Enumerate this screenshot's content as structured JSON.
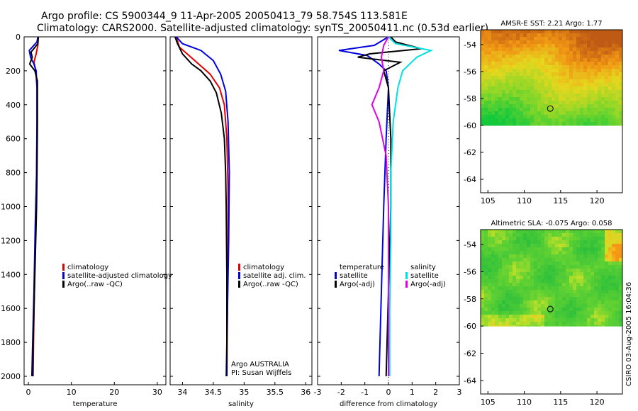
{
  "title_line1": "Argo profile: CS 5900344_9 11-Apr-2005 20050413_79 58.754S 113.581E",
  "title_line2": "Climatology: CARS2000. Satellite-adjusted climatology: synTS_20050411.nc (0.53d earlier)",
  "side_label": "CSIRO 03-Aug-2005 16:04:36",
  "colors": {
    "climatology": "#e00000",
    "satellite": "#0000e0",
    "argo": "#000000",
    "cyan": "#00e0e0",
    "magenta": "#e000e0"
  },
  "chart_data": [
    {
      "id": "temperature",
      "type": "line",
      "xlabel": "temperature",
      "xlim": [
        -1,
        32
      ],
      "ylim": [
        2050,
        0
      ],
      "xticks": [
        0,
        10,
        20,
        30
      ],
      "yticks": [
        0,
        200,
        400,
        600,
        800,
        1000,
        1200,
        1400,
        1600,
        1800,
        2000
      ],
      "legend": [
        {
          "label": "climatology",
          "color": "#e00000"
        },
        {
          "label": "satellite-adjusted climatology",
          "color": "#0000e0"
        },
        {
          "label": "Argo(..raw -QC)",
          "color": "#000000"
        }
      ],
      "series": [
        {
          "name": "climatology",
          "color": "#e00000",
          "points": [
            [
              2.3,
              0
            ],
            [
              2.2,
              50
            ],
            [
              1.8,
              100
            ],
            [
              1.3,
              150
            ],
            [
              1.7,
              200
            ],
            [
              2.0,
              300
            ],
            [
              2.0,
              500
            ],
            [
              1.9,
              800
            ],
            [
              1.7,
              1100
            ],
            [
              1.4,
              1500
            ],
            [
              1.2,
              1800
            ],
            [
              1.1,
              2000
            ]
          ]
        },
        {
          "name": "satellite-adjusted climatology",
          "color": "#0000e0",
          "points": [
            [
              2.2,
              0
            ],
            [
              2.0,
              30
            ],
            [
              0.2,
              80
            ],
            [
              0.5,
              120
            ],
            [
              1.3,
              160
            ],
            [
              1.8,
              200
            ],
            [
              2.0,
              300
            ],
            [
              2.0,
              500
            ],
            [
              1.9,
              800
            ],
            [
              1.6,
              1100
            ],
            [
              1.3,
              1500
            ],
            [
              1.0,
              1800
            ],
            [
              0.8,
              2000
            ]
          ]
        },
        {
          "name": "Argo",
          "color": "#000000",
          "points": [
            [
              2.3,
              0
            ],
            [
              2.2,
              40
            ],
            [
              0.6,
              90
            ],
            [
              0.9,
              120
            ],
            [
              0.3,
              160
            ],
            [
              1.5,
              200
            ],
            [
              2.1,
              260
            ],
            [
              2.1,
              500
            ],
            [
              2.0,
              800
            ],
            [
              1.9,
              1000
            ],
            [
              1.6,
              1300
            ],
            [
              1.3,
              1600
            ],
            [
              1.1,
              1800
            ],
            [
              1.0,
              2000
            ]
          ]
        }
      ]
    },
    {
      "id": "salinity",
      "type": "line",
      "xlabel": "salinity",
      "xlim": [
        33.8,
        36.1
      ],
      "ylim": [
        2050,
        0
      ],
      "xticks": [
        34,
        34.5,
        35,
        35.5,
        36
      ],
      "yticks": [
        0,
        200,
        400,
        600,
        800,
        1000,
        1200,
        1400,
        1600,
        1800,
        2000
      ],
      "legend": [
        {
          "label": "climatology",
          "color": "#e00000"
        },
        {
          "label": "satellite adj. clim.",
          "color": "#0000e0"
        },
        {
          "label": "Argo(..raw -QC)",
          "color": "#000000"
        }
      ],
      "annotation_lines": [
        "Argo AUSTRALIA",
        "PI: Susan Wijffels"
      ],
      "series": [
        {
          "name": "climatology",
          "color": "#e00000",
          "points": [
            [
              33.9,
              0
            ],
            [
              33.95,
              60
            ],
            [
              34.2,
              140
            ],
            [
              34.45,
              220
            ],
            [
              34.6,
              300
            ],
            [
              34.68,
              400
            ],
            [
              34.72,
              600
            ],
            [
              34.74,
              900
            ],
            [
              34.74,
              1200
            ],
            [
              34.73,
              1600
            ],
            [
              34.72,
              2000
            ]
          ]
        },
        {
          "name": "satellite adj. clim.",
          "color": "#0000e0",
          "points": [
            [
              33.9,
              0
            ],
            [
              34.0,
              40
            ],
            [
              34.3,
              80
            ],
            [
              34.5,
              140
            ],
            [
              34.62,
              220
            ],
            [
              34.7,
              320
            ],
            [
              34.74,
              500
            ],
            [
              34.76,
              800
            ],
            [
              34.75,
              1200
            ],
            [
              34.73,
              1600
            ],
            [
              34.71,
              2000
            ]
          ]
        },
        {
          "name": "Argo",
          "color": "#000000",
          "points": [
            [
              33.88,
              0
            ],
            [
              33.92,
              40
            ],
            [
              34.0,
              100
            ],
            [
              34.15,
              160
            ],
            [
              34.3,
              200
            ],
            [
              34.45,
              260
            ],
            [
              34.55,
              330
            ],
            [
              34.63,
              450
            ],
            [
              34.68,
              600
            ],
            [
              34.7,
              800
            ],
            [
              34.71,
              1000
            ],
            [
              34.72,
              1400
            ],
            [
              34.72,
              2000
            ]
          ]
        }
      ]
    },
    {
      "id": "difference",
      "type": "line",
      "xlabel": "difference from climatology",
      "xlim": [
        -3,
        3
      ],
      "ylim": [
        2050,
        0
      ],
      "xticks": [
        -3,
        -2,
        -1,
        0,
        1,
        2,
        3
      ],
      "yticks": [
        0,
        200,
        400,
        600,
        800,
        1000,
        1200,
        1400,
        1600,
        1800,
        2000
      ],
      "legend_left": [
        {
          "label": "temperature",
          "color": ""
        },
        {
          "label": "satellite",
          "color": "#0000e0"
        },
        {
          "label": "Argo(-adj)",
          "color": "#000000"
        }
      ],
      "legend_right": [
        {
          "label": "salinity",
          "color": ""
        },
        {
          "label": "satellite",
          "color": "#00e0e0"
        },
        {
          "label": "Argo(-adj)",
          "color": "#e000e0"
        }
      ],
      "series": [
        {
          "name": "temperature satellite",
          "color": "#0000e0",
          "points": [
            [
              0,
              0
            ],
            [
              -0.6,
              50
            ],
            [
              -2.1,
              80
            ],
            [
              -0.9,
              110
            ],
            [
              -0.4,
              160
            ],
            [
              -0.1,
              200
            ],
            [
              0,
              300
            ],
            [
              -0.1,
              600
            ],
            [
              -0.2,
              1000
            ],
            [
              -0.3,
              1500
            ],
            [
              -0.4,
              2000
            ]
          ]
        },
        {
          "name": "temperature Argo",
          "color": "#000000",
          "points": [
            [
              0.1,
              0
            ],
            [
              0.3,
              30
            ],
            [
              1.4,
              70
            ],
            [
              -0.8,
              100
            ],
            [
              -1.3,
              120
            ],
            [
              0.5,
              150
            ],
            [
              -0.2,
              200
            ],
            [
              0,
              300
            ],
            [
              0.1,
              600
            ],
            [
              0.1,
              1000
            ],
            [
              0.0,
              1500
            ],
            [
              -0.1,
              2000
            ]
          ]
        },
        {
          "name": "salinity satellite",
          "color": "#00e0e0",
          "points": [
            [
              0,
              0
            ],
            [
              0.3,
              40
            ],
            [
              1.8,
              80
            ],
            [
              1.2,
              120
            ],
            [
              0.6,
              200
            ],
            [
              0.4,
              300
            ],
            [
              0.2,
              500
            ],
            [
              0.1,
              800
            ],
            [
              0.1,
              1200
            ],
            [
              0.05,
              1600
            ],
            [
              0.05,
              2000
            ]
          ]
        },
        {
          "name": "salinity Argo",
          "color": "#e000e0",
          "points": [
            [
              0,
              0
            ],
            [
              -0.2,
              50
            ],
            [
              -0.3,
              120
            ],
            [
              -0.2,
              200
            ],
            [
              -0.4,
              300
            ],
            [
              -0.7,
              400
            ],
            [
              -0.4,
              500
            ],
            [
              -0.1,
              700
            ],
            [
              0,
              1000
            ],
            [
              0,
              1500
            ],
            [
              0,
              2000
            ]
          ]
        }
      ]
    }
  ],
  "maps": [
    {
      "title": "AMSR-E SST: 2.21 Argo: 1.77",
      "xlim": [
        104,
        123.5
      ],
      "ylim": [
        -65,
        -52.9
      ],
      "xticks": [
        105,
        110,
        115,
        120
      ],
      "yticks": [
        -54,
        -56,
        -58,
        -60,
        -62,
        -64
      ],
      "data_lat_min": -60,
      "argo_point": [
        113.58,
        -58.75
      ],
      "kind": "sst"
    },
    {
      "title": "Altimetric SLA: -0.075 Argo: 0.058",
      "xlim": [
        104,
        123.5
      ],
      "ylim": [
        -65,
        -52.9
      ],
      "xticks": [
        105,
        110,
        115,
        120
      ],
      "yticks": [
        -54,
        -56,
        -58,
        -60,
        -62,
        -64
      ],
      "data_lat_min": -60,
      "argo_point": [
        113.58,
        -58.75
      ],
      "kind": "sla"
    }
  ]
}
